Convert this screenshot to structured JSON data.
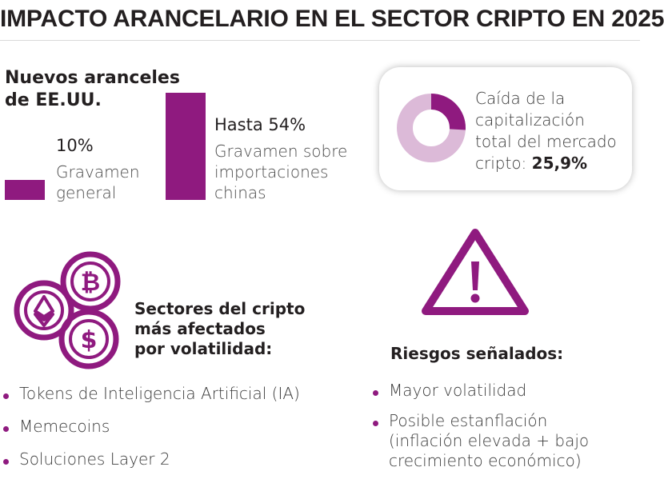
{
  "title": "IMPACTO ARANCELARIO EN EL SECTOR CRIPTO EN 2025",
  "tariffs": {
    "heading_line1": "Nuevos aranceles",
    "heading_line2": "de EE.UU.",
    "general": {
      "value": "10%",
      "label_line1": "Gravamen",
      "label_line2": "general",
      "percent": 10
    },
    "china": {
      "value": "Hasta 54%",
      "label_line1": "Gravamen sobre",
      "label_line2": "importaciones",
      "label_line3": "chinas",
      "percent": 54
    }
  },
  "market_drop": {
    "line1": "Caída de la",
    "line2": "capitalización",
    "line3": "total del mercado",
    "line4_prefix": "cripto: ",
    "value": "25,9%",
    "percent": 25.9
  },
  "sectors": {
    "heading_line1": "Sectores del cripto",
    "heading_line2": "más afectados",
    "heading_line3": "por volatilidad:",
    "items": [
      "Tokens de Inteligencia Artificial (IA)",
      "Memecoins",
      "Soluciones Layer 2"
    ]
  },
  "risks": {
    "heading": "Riesgos señalados:",
    "item1": "Mayor volatilidad",
    "item2_line1": "Posible estanflación",
    "item2_line2": "(inflación elevada + bajo",
    "item2_line3": "crecimiento económico)"
  },
  "icons": {
    "coins": "crypto-coins-icon",
    "warning": "warning-triangle-icon",
    "donut": "donut-chart-icon"
  },
  "colors": {
    "accent": "#8f1a7f",
    "accent_light": "#dcbad8"
  }
}
